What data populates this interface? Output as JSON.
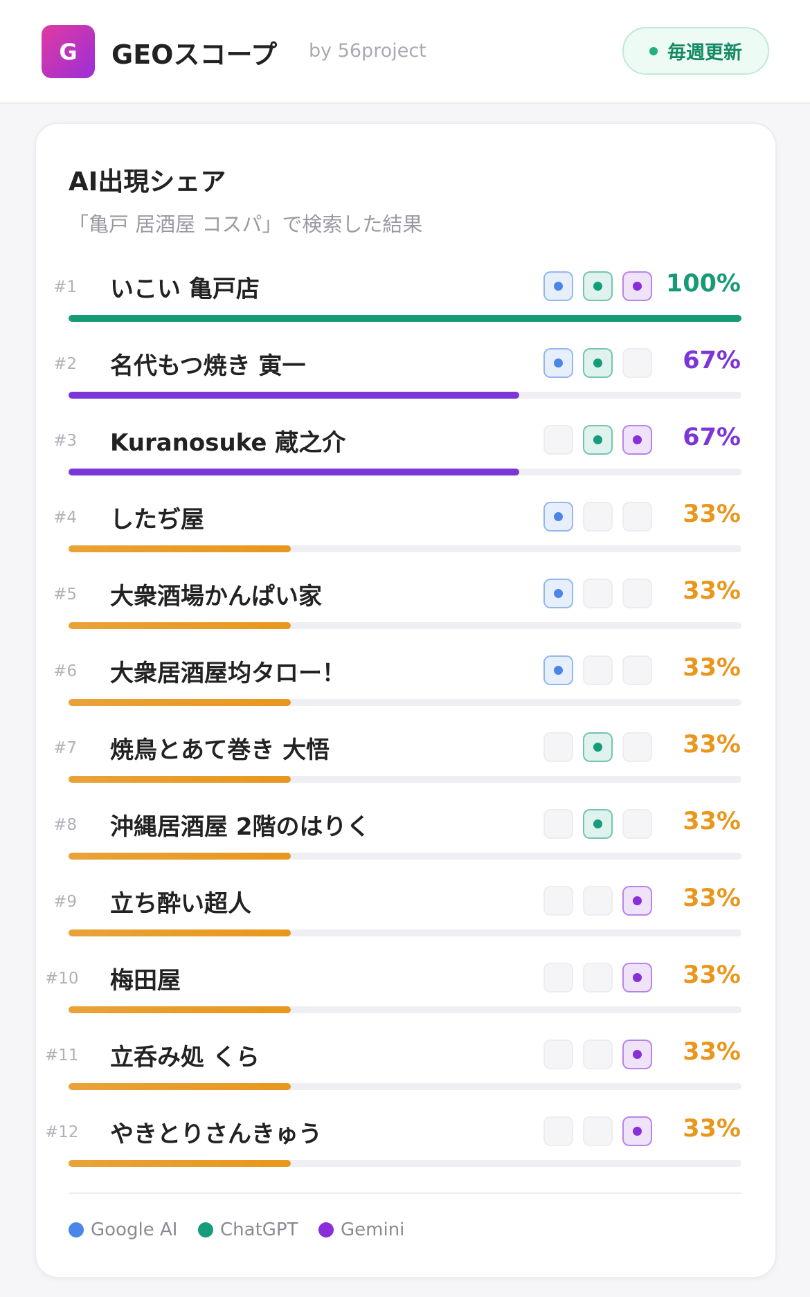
{
  "header": {
    "logo": "G",
    "title": "GEOスコープ",
    "byline": "by 56project",
    "badge": "毎週更新"
  },
  "card": {
    "title": "AI出現シェア",
    "subtitle": "「亀戸 居酒屋 コスパ」で検索した結果",
    "max_share": 100,
    "legend": [
      {
        "name": "Google AI",
        "color": "#4a86e8"
      },
      {
        "name": "ChatGPT",
        "color": "#159c7b"
      },
      {
        "name": "Gemini",
        "color": "#8a2fd8"
      }
    ],
    "rows": [
      {
        "rank": "#1",
        "name": "いこい 亀戸店",
        "share": 100,
        "share_label": "100%",
        "color": "#179a76",
        "sources": [
          true,
          true,
          true
        ]
      },
      {
        "rank": "#2",
        "name": "名代もつ焼き 寅一",
        "share": 67,
        "share_label": "67%",
        "color": "#7c35d6",
        "sources": [
          true,
          true,
          false
        ]
      },
      {
        "rank": "#3",
        "name": "Kuranosuke 蔵之介",
        "share": 67,
        "share_label": "67%",
        "color": "#7c35d6",
        "sources": [
          false,
          true,
          true
        ]
      },
      {
        "rank": "#4",
        "name": "したぢ屋",
        "share": 33,
        "share_label": "33%",
        "color": "#e8971c",
        "sources": [
          true,
          false,
          false
        ]
      },
      {
        "rank": "#5",
        "name": "大衆酒場かんぱい家",
        "share": 33,
        "share_label": "33%",
        "color": "#e8971c",
        "sources": [
          true,
          false,
          false
        ]
      },
      {
        "rank": "#6",
        "name": "大衆居酒屋均タロー！",
        "share": 33,
        "share_label": "33%",
        "color": "#e8971c",
        "sources": [
          true,
          false,
          false
        ]
      },
      {
        "rank": "#7",
        "name": "焼鳥とあて巻き 大悟",
        "share": 33,
        "share_label": "33%",
        "color": "#e8971c",
        "sources": [
          false,
          true,
          false
        ]
      },
      {
        "rank": "#8",
        "name": "沖縄居酒屋 2階のはりく",
        "share": 33,
        "share_label": "33%",
        "color": "#e8971c",
        "sources": [
          false,
          true,
          false
        ]
      },
      {
        "rank": "#9",
        "name": "立ち酔い超人",
        "share": 33,
        "share_label": "33%",
        "color": "#e8971c",
        "sources": [
          false,
          false,
          true
        ]
      },
      {
        "rank": "#10",
        "name": "梅田屋",
        "share": 33,
        "share_label": "33%",
        "color": "#e8971c",
        "sources": [
          false,
          false,
          true
        ]
      },
      {
        "rank": "#11",
        "name": "立呑み処 くら",
        "share": 33,
        "share_label": "33%",
        "color": "#e8971c",
        "sources": [
          false,
          false,
          true
        ]
      },
      {
        "rank": "#12",
        "name": "やきとりさんきゅう",
        "share": 33,
        "share_label": "33%",
        "color": "#e8971c",
        "sources": [
          false,
          false,
          true
        ]
      }
    ]
  }
}
